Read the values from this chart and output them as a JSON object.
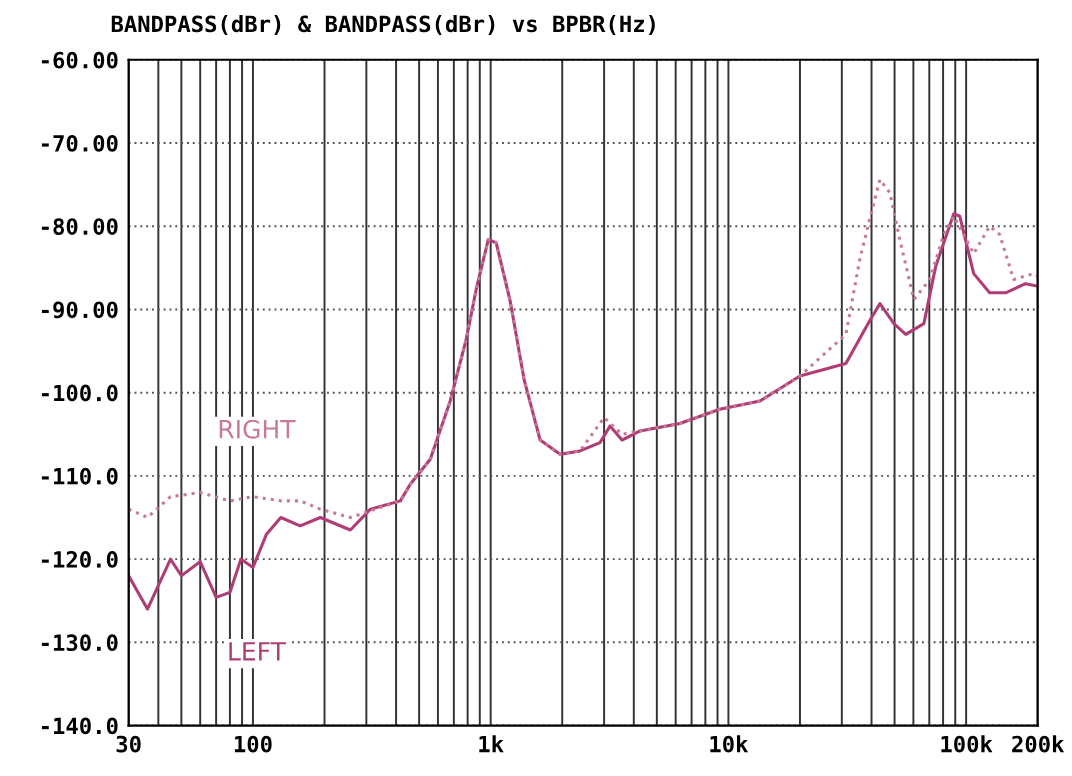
{
  "chart_data": {
    "type": "line",
    "title": "BANDPASS(dBr) & BANDPASS(dBr) vs BPBR(Hz)",
    "log": "x",
    "grid": true,
    "xlim": [
      30,
      200000
    ],
    "xticks": [
      30,
      100,
      {
        "value": 1000,
        "label": "1k"
      },
      {
        "value": 10000,
        "label": "10k"
      },
      {
        "value": 100000,
        "label": "100k"
      },
      {
        "value": 200000,
        "label": "200k"
      }
    ],
    "ylim": [
      -140,
      -60
    ],
    "yticks": [
      {
        "value": -60,
        "label": "-60.00"
      },
      {
        "value": -70,
        "label": "-70.00"
      },
      {
        "value": -80,
        "label": "-80.00"
      },
      {
        "value": -90,
        "label": "-90.00"
      },
      {
        "value": -100,
        "label": "-100.0"
      },
      {
        "value": -110,
        "label": "-110.0"
      },
      {
        "value": -120,
        "label": "-120.0"
      },
      {
        "value": -130,
        "label": "-130.0"
      },
      {
        "value": -140,
        "label": "-140.0"
      }
    ],
    "series": [
      {
        "name": "LEFT",
        "color": "#b03c74",
        "line_style": "solid",
        "x": [
          30,
          36,
          45,
          50,
          60,
          70,
          80,
          89,
          100,
          114,
          131,
          158,
          192,
          257,
          312,
          417,
          459,
          557,
          676,
          789,
          869,
          977,
          1055,
          1208,
          1384,
          1615,
          1959,
          2377,
          2884,
          3178,
          3569,
          4250,
          6250,
          9200,
          13580,
          20000,
          31200,
          39400,
          43400,
          49700,
          55700,
          66400,
          74500,
          88700,
          94000,
          107600,
          125600,
          146600,
          177800,
          200000
        ],
        "values": [
          -122,
          -126,
          -120,
          -122,
          -120.3,
          -124.6,
          -124,
          -120,
          -121,
          -117,
          -115,
          -116,
          -115,
          -116.5,
          -114,
          -113,
          -111,
          -108,
          -101,
          -93.6,
          -87.6,
          -81.6,
          -82,
          -89,
          -98.5,
          -105.7,
          -107.4,
          -107,
          -106,
          -104,
          -105.7,
          -104.6,
          -103.7,
          -102,
          -101,
          -98,
          -96.5,
          -91.3,
          -89.3,
          -91.7,
          -93,
          -91.7,
          -84.8,
          -78.5,
          -78.8,
          -85.7,
          -88,
          -88,
          -86.9,
          -87.2
        ]
      },
      {
        "name": "RIGHT",
        "color": "#c87898",
        "line_style": "dotted",
        "x": [
          30,
          36,
          45,
          60,
          80,
          100,
          131,
          158,
          192,
          257,
          417,
          459,
          557,
          676,
          789,
          869,
          977,
          1055,
          1208,
          1384,
          1615,
          1959,
          2377,
          3000,
          3569,
          4250,
          6250,
          9200,
          13580,
          20000,
          31200,
          35700,
          39400,
          43400,
          47800,
          52600,
          60300,
          70300,
          80500,
          88700,
          107600,
          125600,
          138400,
          158500,
          192300,
          200000
        ],
        "values": [
          -114,
          -115,
          -112.5,
          -112,
          -113,
          -112.5,
          -113,
          -113,
          -114,
          -115,
          -113,
          -111,
          -108,
          -101,
          -93.6,
          -87.6,
          -81.6,
          -82,
          -89,
          -98.5,
          -105.7,
          -107.4,
          -107,
          -103,
          -105,
          -104.6,
          -103.7,
          -102,
          -101,
          -98,
          -93,
          -84,
          -79,
          -74.4,
          -76,
          -81.6,
          -88.8,
          -86.4,
          -81,
          -78.8,
          -83.3,
          -80,
          -81,
          -86.4,
          -85.7,
          -86
        ]
      }
    ]
  }
}
